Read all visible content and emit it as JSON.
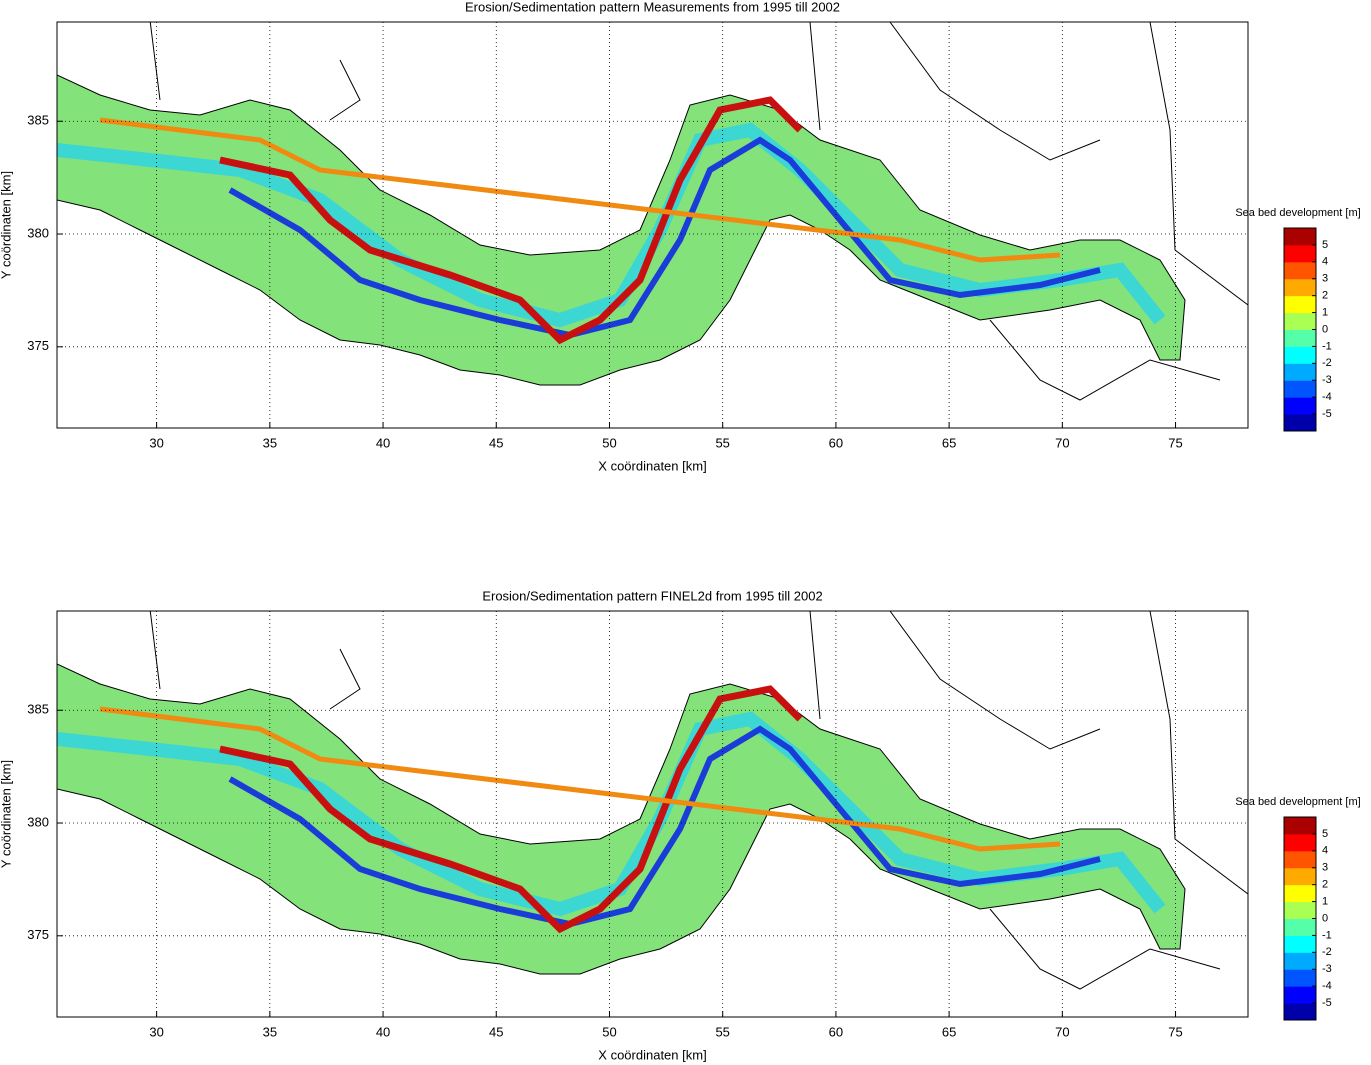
{
  "chart_data": [
    {
      "type": "map",
      "title": "Erosion/Sedimentation pattern Measurements from 1995 till 2002",
      "xlabel": "X coördinaten [km]",
      "ylabel": "Y coördinaten [km]",
      "xlim": [
        25.6,
        78.2
      ],
      "ylim": [
        371.4,
        389.4
      ],
      "xticks": [
        30,
        35,
        40,
        45,
        50,
        55,
        60,
        65,
        70,
        75
      ],
      "yticks": [
        375,
        380,
        385
      ],
      "grid": true,
      "colorbar": {
        "label": "Sea bed development [m]",
        "clim": [
          -6,
          6
        ],
        "ticks": [
          -5,
          -4,
          -3,
          -2,
          -1,
          0,
          1,
          2,
          3,
          4,
          5
        ],
        "colormap": "jet"
      }
    },
    {
      "type": "map",
      "title": "Erosion/Sedimentation pattern FINEL2d from 1995 till 2002",
      "xlabel": "X coördinaten [km]",
      "ylabel": "Y coördinaten [km]",
      "xlim": [
        25.6,
        78.2
      ],
      "ylim": [
        371.4,
        389.4
      ],
      "xticks": [
        30,
        35,
        40,
        45,
        50,
        55,
        60,
        65,
        70,
        75
      ],
      "yticks": [
        375,
        380,
        385
      ],
      "grid": true,
      "colorbar": {
        "label": "Sea bed development [m]",
        "clim": [
          -6,
          6
        ],
        "ticks": [
          -5,
          -4,
          -3,
          -2,
          -1,
          0,
          1,
          2,
          3,
          4,
          5
        ],
        "colormap": "jet"
      }
    }
  ]
}
